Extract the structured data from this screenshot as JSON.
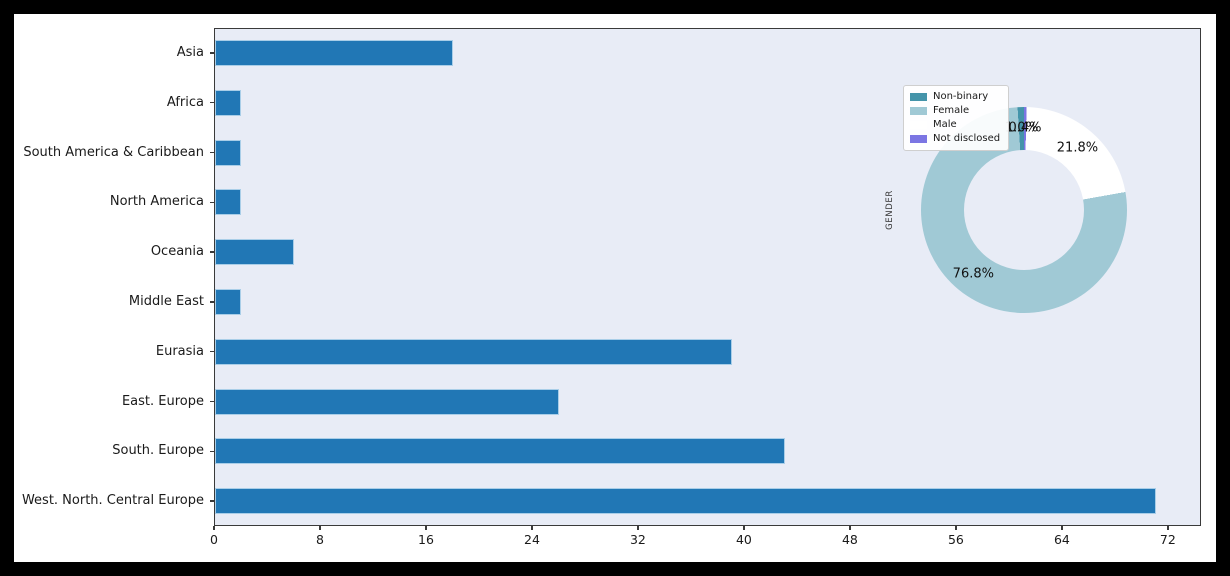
{
  "figure": {
    "outer_bg": "#000000",
    "figure_bg": "#ffffff",
    "plot_bg": "#e8ecf6",
    "spine_color": "#3a3a3a",
    "text_color": "#1a1a1a"
  },
  "chart_data": [
    {
      "type": "bar",
      "orientation": "horizontal",
      "title": "",
      "xlabel": "",
      "ylabel": "",
      "categories": [
        "Asia",
        "Africa",
        "South America & Caribbean",
        "North America",
        "Oceania",
        "Middle East",
        "Eurasia",
        "East. Europe",
        "South. Europe",
        "West. North. Central Europe"
      ],
      "values": [
        18,
        2,
        2,
        2,
        6,
        2,
        39,
        26,
        43,
        71
      ],
      "xticks": [
        0,
        8,
        16,
        24,
        32,
        40,
        48,
        56,
        64,
        72
      ],
      "xlim": [
        0,
        74.5
      ],
      "grid": false,
      "bar_color": "#2177b5",
      "bar_edge_color": "#a9cee8"
    },
    {
      "type": "pie",
      "donut": true,
      "title": "GENDER",
      "labels": [
        "Non-binary",
        "Female",
        "Male",
        "Not disclosed"
      ],
      "values": [
        1.0,
        76.8,
        21.8,
        0.4
      ],
      "pct_labels": [
        "1.0%",
        "76.8%",
        "21.8%",
        "0.4%"
      ],
      "colors": [
        "#4494aa",
        "#a0c9d5",
        "#ffffff",
        "#7b75e3"
      ],
      "start_angle": 90,
      "direction": "counterclockwise",
      "legend_position": "upper left"
    }
  ],
  "pie_axis_label": "GENDER"
}
